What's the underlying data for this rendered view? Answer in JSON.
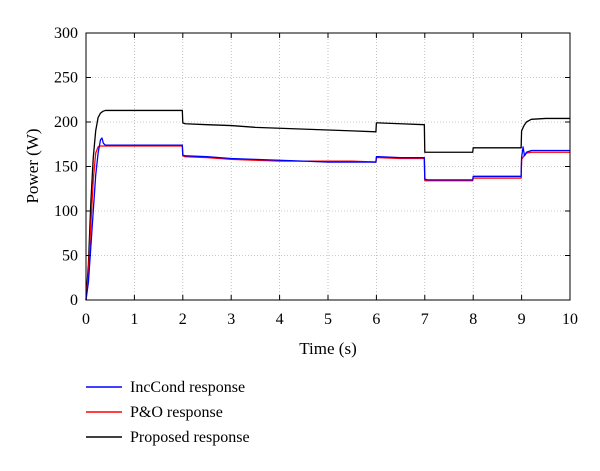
{
  "chart_data": {
    "type": "line",
    "title": "",
    "xlabel": "Time (s)",
    "ylabel": "Power (W)",
    "xlim": [
      0,
      10
    ],
    "ylim": [
      0,
      300
    ],
    "xticks": [
      0,
      1,
      2,
      3,
      4,
      5,
      6,
      7,
      8,
      9,
      10
    ],
    "yticks": [
      0,
      50,
      100,
      150,
      200,
      250,
      300
    ],
    "grid": "dotted",
    "legend_position": "below-plot",
    "series": [
      {
        "name": "IncCond response",
        "color": "#0000ff",
        "x": [
          0,
          0.05,
          0.1,
          0.15,
          0.2,
          0.25,
          0.3,
          0.33,
          0.36,
          0.4,
          0.5,
          0.7,
          1.0,
          1.5,
          1.99,
          2.0,
          2.05,
          2.5,
          3.0,
          3.5,
          4.0,
          4.5,
          5.0,
          5.5,
          5.99,
          6.0,
          6.05,
          6.5,
          6.99,
          7.0,
          7.05,
          7.5,
          7.99,
          8.0,
          8.05,
          8.5,
          8.99,
          9.0,
          9.03,
          9.06,
          9.1,
          9.2,
          9.5,
          10.0
        ],
        "y": [
          0,
          20,
          60,
          100,
          140,
          165,
          180,
          182,
          176,
          174,
          174,
          174,
          174,
          174,
          174,
          163,
          162,
          161,
          159,
          158,
          157,
          156,
          155,
          155,
          155,
          161,
          161,
          160,
          160,
          136,
          135,
          135,
          135,
          139,
          139,
          139,
          139,
          160,
          172,
          162,
          166,
          168,
          168,
          168
        ]
      },
      {
        "name": "P&O response",
        "color": "#ff0000",
        "x": [
          0,
          0.05,
          0.1,
          0.15,
          0.2,
          0.25,
          0.3,
          0.4,
          0.5,
          0.7,
          1.0,
          1.5,
          1.99,
          2.0,
          2.05,
          2.5,
          3.0,
          3.5,
          4.0,
          4.5,
          5.0,
          5.5,
          5.99,
          6.0,
          6.05,
          6.5,
          6.99,
          7.0,
          7.05,
          7.5,
          7.99,
          8.0,
          8.05,
          8.5,
          8.99,
          9.0,
          9.05,
          9.1,
          9.2,
          9.5,
          10.0
        ],
        "y": [
          0,
          30,
          85,
          135,
          165,
          172,
          173,
          173,
          173,
          173,
          173,
          173,
          173,
          162,
          161,
          160,
          158,
          157,
          156,
          156,
          156,
          156,
          155,
          160,
          160,
          159,
          159,
          134,
          134,
          134,
          134,
          137,
          137,
          137,
          137,
          158,
          162,
          165,
          166,
          166,
          166
        ]
      },
      {
        "name": "Proposed response",
        "color": "#000000",
        "x": [
          0,
          0.05,
          0.1,
          0.15,
          0.2,
          0.25,
          0.3,
          0.35,
          0.4,
          0.5,
          1.0,
          1.5,
          1.99,
          2.0,
          2.05,
          2.5,
          3.0,
          3.5,
          4.0,
          4.5,
          5.0,
          5.5,
          5.99,
          6.0,
          6.05,
          6.5,
          6.99,
          7.0,
          7.05,
          7.5,
          7.99,
          8.0,
          8.05,
          8.5,
          8.99,
          9.0,
          9.05,
          9.1,
          9.2,
          9.5,
          10.0
        ],
        "y": [
          0,
          40,
          110,
          160,
          190,
          205,
          210,
          212,
          213,
          213,
          213,
          213,
          213,
          199,
          198,
          197,
          196,
          194,
          193,
          192,
          191,
          190,
          189,
          199,
          199,
          198,
          197,
          166,
          166,
          166,
          166,
          171,
          171,
          171,
          171,
          190,
          196,
          200,
          203,
          204,
          204
        ]
      }
    ]
  }
}
